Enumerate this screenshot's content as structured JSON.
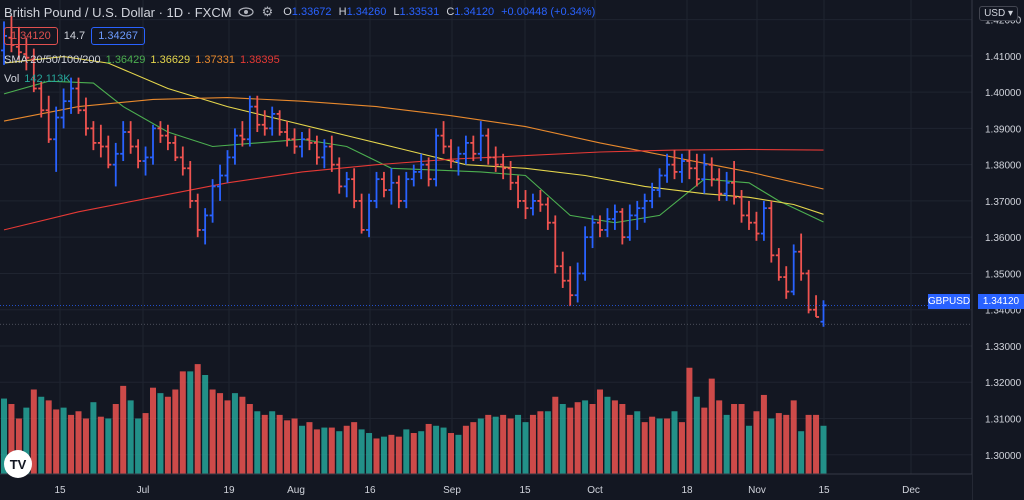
{
  "header": {
    "title": "British Pound / U.S. Dollar · 1D · FXCM",
    "open_label": "O",
    "open_value": "1.33672",
    "high_label": "H",
    "high_value": "1.34260",
    "low_label": "L",
    "low_value": "1.33531",
    "close_label": "C",
    "close_value": "1.34120",
    "change_value": "+0.00448 (+0.34%)"
  },
  "trade": {
    "sell_price": "1.34120",
    "spread": "14.7",
    "buy_price": "1.34267"
  },
  "indicators": {
    "sma_label": "SMA 20/50/100/200",
    "sma20": "1.36429",
    "sma50": "1.36629",
    "sma100": "1.37331",
    "sma200": "1.38395",
    "vol_label": "Vol",
    "vol_value": "142.113K"
  },
  "price_axis": {
    "currency": "USD",
    "symbol_tag": "GBPUSD",
    "last_price": "1.34120",
    "ticks": [
      "1.42000",
      "1.41000",
      "1.40000",
      "1.39000",
      "1.38000",
      "1.37000",
      "1.36000",
      "1.35000",
      "1.34000",
      "1.33000",
      "1.32000",
      "1.31000",
      "1.30000"
    ]
  },
  "time_axis": {
    "ticks": [
      "15",
      "Jul",
      "19",
      "Aug",
      "16",
      "Sep",
      "15",
      "Oct",
      "18",
      "Nov",
      "15",
      "Dec"
    ]
  },
  "colors": {
    "background": "#131722",
    "up": "#2962ff",
    "down": "#ef5350",
    "vol_up": "#26a69a",
    "vol_down": "#ef5350",
    "sma20": "#4caf50",
    "sma50": "#e5d64c",
    "sma100": "#e8892d",
    "sma200": "#e53935",
    "axis_text": "#d1d4dc",
    "grid": "#1f2430"
  },
  "chart_data": {
    "type": "bar",
    "style": "ohlc",
    "symbol": "GBPUSD",
    "ylim": [
      1.295,
      1.43
    ],
    "grid": true,
    "ohlc": [
      [
        1.4115,
        1.4195,
        1.4075,
        1.4155
      ],
      [
        1.415,
        1.421,
        1.411,
        1.413
      ],
      [
        1.4125,
        1.418,
        1.409,
        1.411
      ],
      [
        1.4105,
        1.415,
        1.406,
        1.4095
      ],
      [
        1.409,
        1.412,
        1.4,
        1.401
      ],
      [
        1.401,
        1.403,
        1.393,
        1.395
      ],
      [
        1.395,
        1.399,
        1.386,
        1.387
      ],
      [
        1.387,
        1.396,
        1.378,
        1.393
      ],
      [
        1.393,
        1.401,
        1.39,
        1.3975
      ],
      [
        1.3975,
        1.404,
        1.394,
        1.401
      ],
      [
        1.401,
        1.404,
        1.394,
        1.395
      ],
      [
        1.395,
        1.3985,
        1.388,
        1.39
      ],
      [
        1.39,
        1.392,
        1.384,
        1.386
      ],
      [
        1.386,
        1.391,
        1.382,
        1.385
      ],
      [
        1.385,
        1.388,
        1.379,
        1.38
      ],
      [
        1.38,
        1.386,
        1.374,
        1.383
      ],
      [
        1.383,
        1.392,
        1.381,
        1.389
      ],
      [
        1.389,
        1.392,
        1.383,
        1.385
      ],
      [
        1.385,
        1.387,
        1.379,
        1.381
      ],
      [
        1.381,
        1.385,
        1.377,
        1.382
      ],
      [
        1.382,
        1.391,
        1.38,
        1.39
      ],
      [
        1.39,
        1.392,
        1.386,
        1.388
      ],
      [
        1.388,
        1.391,
        1.384,
        1.386
      ],
      [
        1.386,
        1.388,
        1.381,
        1.382
      ],
      [
        1.382,
        1.385,
        1.377,
        1.379
      ],
      [
        1.379,
        1.381,
        1.368,
        1.37
      ],
      [
        1.37,
        1.372,
        1.36,
        1.362
      ],
      [
        1.362,
        1.368,
        1.358,
        1.366
      ],
      [
        1.366,
        1.376,
        1.364,
        1.374
      ],
      [
        1.374,
        1.38,
        1.37,
        1.377
      ],
      [
        1.377,
        1.384,
        1.375,
        1.382
      ],
      [
        1.382,
        1.39,
        1.38,
        1.388
      ],
      [
        1.388,
        1.392,
        1.385,
        1.387
      ],
      [
        1.387,
        1.399,
        1.385,
        1.396
      ],
      [
        1.396,
        1.399,
        1.389,
        1.391
      ],
      [
        1.391,
        1.395,
        1.388,
        1.39
      ],
      [
        1.39,
        1.396,
        1.388,
        1.394
      ],
      [
        1.394,
        1.395,
        1.388,
        1.389
      ],
      [
        1.389,
        1.392,
        1.385,
        1.387
      ],
      [
        1.387,
        1.39,
        1.383,
        1.385
      ],
      [
        1.385,
        1.389,
        1.382,
        1.387
      ],
      [
        1.387,
        1.39,
        1.384,
        1.386
      ],
      [
        1.386,
        1.388,
        1.38,
        1.382
      ],
      [
        1.382,
        1.387,
        1.379,
        1.385
      ],
      [
        1.385,
        1.388,
        1.378,
        1.38
      ],
      [
        1.38,
        1.382,
        1.372,
        1.374
      ],
      [
        1.374,
        1.378,
        1.371,
        1.376
      ],
      [
        1.376,
        1.379,
        1.368,
        1.37
      ],
      [
        1.37,
        1.372,
        1.361,
        1.362
      ],
      [
        1.362,
        1.372,
        1.36,
        1.37
      ],
      [
        1.37,
        1.378,
        1.368,
        1.376
      ],
      [
        1.376,
        1.378,
        1.371,
        1.373
      ],
      [
        1.373,
        1.379,
        1.369,
        1.375
      ],
      [
        1.375,
        1.377,
        1.368,
        1.37
      ],
      [
        1.37,
        1.378,
        1.368,
        1.376
      ],
      [
        1.376,
        1.38,
        1.374,
        1.378
      ],
      [
        1.378,
        1.383,
        1.376,
        1.38
      ],
      [
        1.38,
        1.382,
        1.374,
        1.376
      ],
      [
        1.376,
        1.39,
        1.374,
        1.388
      ],
      [
        1.388,
        1.392,
        1.383,
        1.385
      ],
      [
        1.385,
        1.387,
        1.379,
        1.381
      ],
      [
        1.381,
        1.385,
        1.377,
        1.383
      ],
      [
        1.383,
        1.388,
        1.38,
        1.386
      ],
      [
        1.386,
        1.388,
        1.381,
        1.383
      ],
      [
        1.383,
        1.392,
        1.381,
        1.388
      ],
      [
        1.388,
        1.39,
        1.38,
        1.382
      ],
      [
        1.382,
        1.385,
        1.378,
        1.38
      ],
      [
        1.38,
        1.383,
        1.376,
        1.379
      ],
      [
        1.379,
        1.381,
        1.373,
        1.375
      ],
      [
        1.375,
        1.377,
        1.368,
        1.37
      ],
      [
        1.37,
        1.373,
        1.365,
        1.368
      ],
      [
        1.368,
        1.372,
        1.366,
        1.37
      ],
      [
        1.37,
        1.373,
        1.367,
        1.369
      ],
      [
        1.369,
        1.371,
        1.362,
        1.364
      ],
      [
        1.364,
        1.366,
        1.35,
        1.352
      ],
      [
        1.352,
        1.356,
        1.346,
        1.348
      ],
      [
        1.348,
        1.352,
        1.341,
        1.344
      ],
      [
        1.344,
        1.353,
        1.342,
        1.35
      ],
      [
        1.35,
        1.363,
        1.348,
        1.36
      ],
      [
        1.36,
        1.366,
        1.357,
        1.364
      ],
      [
        1.364,
        1.366,
        1.36,
        1.362
      ],
      [
        1.362,
        1.368,
        1.36,
        1.365
      ],
      [
        1.365,
        1.369,
        1.362,
        1.367
      ],
      [
        1.367,
        1.368,
        1.358,
        1.36
      ],
      [
        1.36,
        1.369,
        1.359,
        1.366
      ],
      [
        1.366,
        1.37,
        1.362,
        1.368
      ],
      [
        1.368,
        1.372,
        1.364,
        1.37
      ],
      [
        1.37,
        1.375,
        1.368,
        1.373
      ],
      [
        1.373,
        1.379,
        1.371,
        1.377
      ],
      [
        1.377,
        1.383,
        1.375,
        1.38
      ],
      [
        1.38,
        1.384,
        1.376,
        1.378
      ],
      [
        1.378,
        1.383,
        1.375,
        1.381
      ],
      [
        1.381,
        1.384,
        1.376,
        1.379
      ],
      [
        1.379,
        1.383,
        1.374,
        1.376
      ],
      [
        1.376,
        1.383,
        1.372,
        1.38
      ],
      [
        1.38,
        1.382,
        1.374,
        1.376
      ],
      [
        1.376,
        1.379,
        1.37,
        1.372
      ],
      [
        1.372,
        1.378,
        1.37,
        1.375
      ],
      [
        1.375,
        1.381,
        1.369,
        1.371
      ],
      [
        1.371,
        1.373,
        1.364,
        1.366
      ],
      [
        1.366,
        1.37,
        1.362,
        1.364
      ],
      [
        1.364,
        1.367,
        1.359,
        1.361
      ],
      [
        1.361,
        1.37,
        1.359,
        1.368
      ],
      [
        1.368,
        1.37,
        1.353,
        1.355
      ],
      [
        1.355,
        1.357,
        1.348,
        1.349
      ],
      [
        1.349,
        1.352,
        1.343,
        1.345
      ],
      [
        1.345,
        1.358,
        1.344,
        1.356
      ],
      [
        1.356,
        1.361,
        1.348,
        1.35
      ],
      [
        1.35,
        1.351,
        1.339,
        1.34
      ],
      [
        1.34,
        1.344,
        1.338,
        1.338
      ],
      [
        1.3367,
        1.3426,
        1.3353,
        1.3412
      ]
    ],
    "volume": [
      [
        1.3155,
        0
      ],
      [
        1.314,
        1
      ],
      [
        1.31,
        1
      ],
      [
        1.313,
        0
      ],
      [
        1.318,
        1
      ],
      [
        1.316,
        0
      ],
      [
        1.315,
        1
      ],
      [
        1.3125,
        1
      ],
      [
        1.313,
        0
      ],
      [
        1.311,
        1
      ],
      [
        1.312,
        1
      ],
      [
        1.31,
        1
      ],
      [
        1.3145,
        0
      ],
      [
        1.3105,
        1
      ],
      [
        1.31,
        0
      ],
      [
        1.314,
        1
      ],
      [
        1.319,
        1
      ],
      [
        1.315,
        0
      ],
      [
        1.31,
        0
      ],
      [
        1.3115,
        1
      ],
      [
        1.3185,
        1
      ],
      [
        1.317,
        0
      ],
      [
        1.316,
        1
      ],
      [
        1.318,
        1
      ],
      [
        1.323,
        1
      ],
      [
        1.323,
        0
      ],
      [
        1.325,
        1
      ],
      [
        1.322,
        0
      ],
      [
        1.318,
        1
      ],
      [
        1.317,
        1
      ],
      [
        1.315,
        1
      ],
      [
        1.317,
        0
      ],
      [
        1.316,
        1
      ],
      [
        1.314,
        1
      ],
      [
        1.312,
        0
      ],
      [
        1.311,
        1
      ],
      [
        1.312,
        0
      ],
      [
        1.311,
        1
      ],
      [
        1.3095,
        1
      ],
      [
        1.31,
        1
      ],
      [
        1.308,
        0
      ],
      [
        1.309,
        1
      ],
      [
        1.307,
        1
      ],
      [
        1.3075,
        0
      ],
      [
        1.3075,
        1
      ],
      [
        1.3065,
        0
      ],
      [
        1.308,
        1
      ],
      [
        1.309,
        1
      ],
      [
        1.307,
        0
      ],
      [
        1.306,
        0
      ],
      [
        1.3045,
        1
      ],
      [
        1.305,
        0
      ],
      [
        1.3055,
        1
      ],
      [
        1.305,
        1
      ],
      [
        1.307,
        0
      ],
      [
        1.306,
        1
      ],
      [
        1.3065,
        0
      ],
      [
        1.3085,
        1
      ],
      [
        1.308,
        0
      ],
      [
        1.3075,
        0
      ],
      [
        1.306,
        1
      ],
      [
        1.3055,
        0
      ],
      [
        1.308,
        1
      ],
      [
        1.309,
        1
      ],
      [
        1.31,
        0
      ],
      [
        1.311,
        1
      ],
      [
        1.3105,
        0
      ],
      [
        1.311,
        1
      ],
      [
        1.31,
        1
      ],
      [
        1.311,
        0
      ],
      [
        1.309,
        0
      ],
      [
        1.311,
        1
      ],
      [
        1.312,
        1
      ],
      [
        1.312,
        0
      ],
      [
        1.316,
        1
      ],
      [
        1.314,
        0
      ],
      [
        1.313,
        1
      ],
      [
        1.3145,
        1
      ],
      [
        1.315,
        0
      ],
      [
        1.314,
        1
      ],
      [
        1.318,
        1
      ],
      [
        1.316,
        0
      ],
      [
        1.315,
        1
      ],
      [
        1.314,
        1
      ],
      [
        1.311,
        1
      ],
      [
        1.312,
        0
      ],
      [
        1.309,
        1
      ],
      [
        1.3105,
        1
      ],
      [
        1.31,
        0
      ],
      [
        1.31,
        1
      ],
      [
        1.312,
        0
      ],
      [
        1.309,
        1
      ],
      [
        1.324,
        1
      ],
      [
        1.316,
        0
      ],
      [
        1.313,
        1
      ],
      [
        1.321,
        1
      ],
      [
        1.315,
        1
      ],
      [
        1.311,
        0
      ],
      [
        1.314,
        1
      ],
      [
        1.314,
        1
      ],
      [
        1.308,
        0
      ],
      [
        1.312,
        1
      ],
      [
        1.3165,
        1
      ],
      [
        1.31,
        0
      ],
      [
        1.3115,
        1
      ],
      [
        1.311,
        1
      ],
      [
        1.315,
        1
      ],
      [
        1.3065,
        0
      ],
      [
        1.311,
        1
      ],
      [
        1.311,
        1
      ],
      [
        1.308,
        0
      ]
    ],
    "sma": [
      {
        "name": "SMA 20",
        "color": "#4caf50",
        "points": [
          [
            0,
            1.3995
          ],
          [
            6,
            1.403
          ],
          [
            12,
            1.4025
          ],
          [
            16,
            1.396
          ],
          [
            22,
            1.389
          ],
          [
            28,
            1.385
          ],
          [
            34,
            1.386
          ],
          [
            40,
            1.387
          ],
          [
            46,
            1.385
          ],
          [
            52,
            1.379
          ],
          [
            58,
            1.3785
          ],
          [
            64,
            1.378
          ],
          [
            70,
            1.377
          ],
          [
            76,
            1.366
          ],
          [
            82,
            1.364
          ],
          [
            88,
            1.366
          ],
          [
            94,
            1.376
          ],
          [
            100,
            1.375
          ],
          [
            104,
            1.37
          ],
          [
            110,
            1.3642
          ]
        ]
      },
      {
        "name": "SMA 50",
        "color": "#e5d64c",
        "points": [
          [
            0,
            1.408
          ],
          [
            8,
            1.4098
          ],
          [
            14,
            1.408
          ],
          [
            22,
            1.401
          ],
          [
            30,
            1.396
          ],
          [
            38,
            1.392
          ],
          [
            46,
            1.388
          ],
          [
            54,
            1.384
          ],
          [
            62,
            1.38
          ],
          [
            70,
            1.379
          ],
          [
            78,
            1.377
          ],
          [
            86,
            1.374
          ],
          [
            94,
            1.372
          ],
          [
            100,
            1.371
          ],
          [
            106,
            1.369
          ],
          [
            110,
            1.3663
          ]
        ]
      },
      {
        "name": "SMA 100",
        "color": "#e8892d",
        "points": [
          [
            0,
            1.392
          ],
          [
            10,
            1.396
          ],
          [
            20,
            1.398
          ],
          [
            30,
            1.3985
          ],
          [
            40,
            1.3975
          ],
          [
            50,
            1.396
          ],
          [
            60,
            1.3935
          ],
          [
            70,
            1.3905
          ],
          [
            80,
            1.386
          ],
          [
            90,
            1.382
          ],
          [
            100,
            1.378
          ],
          [
            110,
            1.3733
          ]
        ]
      },
      {
        "name": "SMA 200",
        "color": "#e53935",
        "points": [
          [
            0,
            1.362
          ],
          [
            10,
            1.367
          ],
          [
            20,
            1.371
          ],
          [
            30,
            1.375
          ],
          [
            40,
            1.378
          ],
          [
            50,
            1.38
          ],
          [
            60,
            1.3815
          ],
          [
            70,
            1.3825
          ],
          [
            80,
            1.3835
          ],
          [
            90,
            1.384
          ],
          [
            100,
            1.3842
          ],
          [
            110,
            1.384
          ]
        ]
      }
    ]
  }
}
